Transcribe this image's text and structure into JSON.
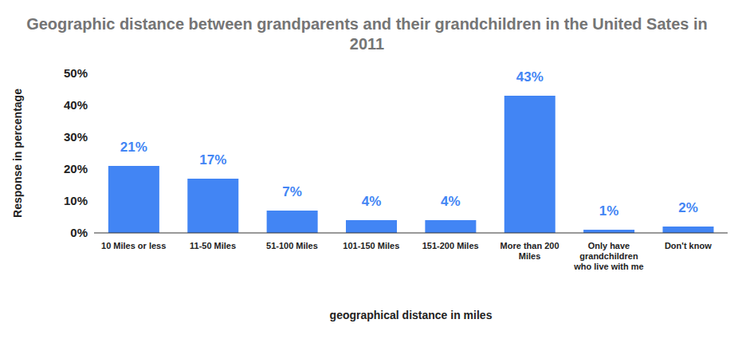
{
  "chart_data": {
    "type": "bar",
    "title": "Geographic distance between grandparents and their grandchildren in the United Sates in 2011",
    "x_label": "geographical distance in miles",
    "y_label": "Response in percentage",
    "categories": [
      "10 Miles or less",
      "11-50 Miles",
      "51-100 Miles",
      "101-150 Miles",
      "151-200 Miles",
      "More than 200 Miles",
      "Only have grandchildren who live with me",
      "Don't know"
    ],
    "values": [
      21,
      17,
      7,
      4,
      4,
      43,
      1,
      2
    ],
    "value_labels": [
      "21%",
      "17%",
      "7%",
      "4%",
      "4%",
      "43%",
      "1%",
      "2%"
    ],
    "color": "#4285f4",
    "ylim": [
      0,
      50
    ],
    "yticks": [
      {
        "value": 0,
        "label": "0%"
      },
      {
        "value": 10,
        "label": "10%"
      },
      {
        "value": 20,
        "label": "20%"
      },
      {
        "value": 30,
        "label": "30%"
      },
      {
        "value": 40,
        "label": "40%"
      },
      {
        "value": 50,
        "label": "50%"
      }
    ],
    "grid": false,
    "data_labels": true
  }
}
